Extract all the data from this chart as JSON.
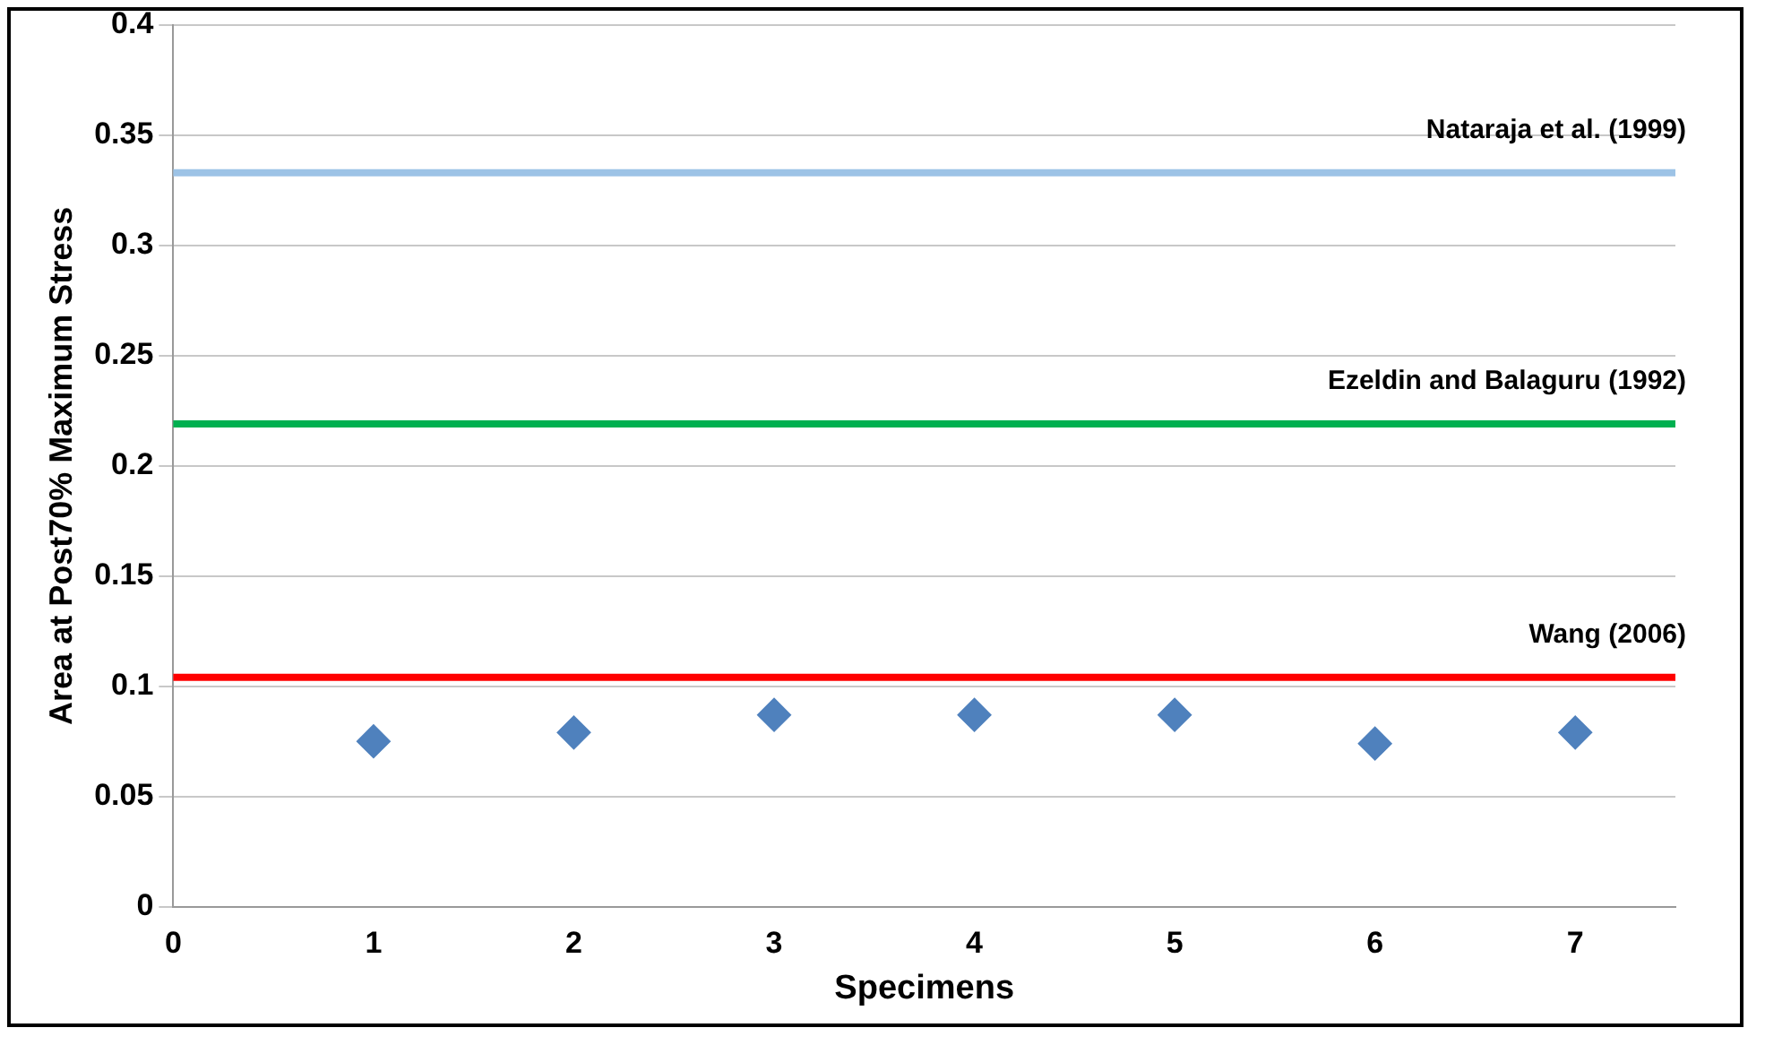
{
  "chart_data": {
    "type": "scatter",
    "xlabel": "Specimens",
    "ylabel": "Area at Post70% Maximum Stress",
    "x": [
      1,
      2,
      3,
      4,
      5,
      6,
      7
    ],
    "series": [
      {
        "color": "#4f81bd",
        "values": [
          0.075,
          0.079,
          0.087,
          0.087,
          0.087,
          0.074,
          0.079
        ]
      }
    ],
    "marker": "diamond",
    "xlim": [
      0,
      7.5
    ],
    "xticks": [
      0,
      1,
      2,
      3,
      4,
      5,
      6,
      7
    ],
    "ylim": [
      0,
      0.4
    ],
    "yticks": [
      0,
      0.05,
      0.1,
      0.15,
      0.2,
      0.25,
      0.3,
      0.35,
      0.4
    ],
    "grid": "y",
    "legend": false,
    "ref_lines": [
      {
        "axis": "y",
        "value": 0.333,
        "label": "Nataraja et al. (1999)",
        "color": "#9dc3e6"
      },
      {
        "axis": "y",
        "value": 0.219,
        "label": "Ezeldin and Balaguru (1992)",
        "color": "#00b050"
      },
      {
        "axis": "y",
        "value": 0.104,
        "label": "Wang (2006)",
        "color": "#ff0000"
      }
    ]
  }
}
